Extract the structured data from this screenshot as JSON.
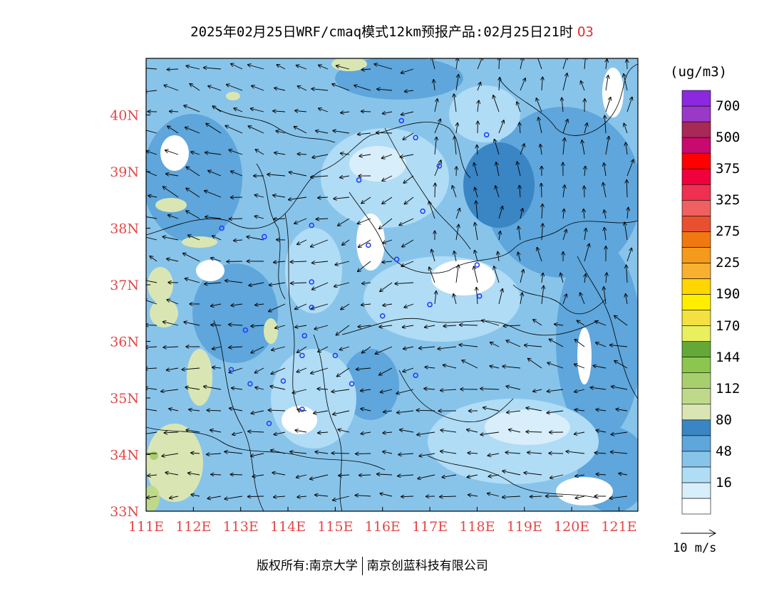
{
  "title": {
    "main": "2025年02月25日WRF/cmaq模式12km预报产品:02月25日21时",
    "pollutant": "O3"
  },
  "map": {
    "lon_labels": [
      "111E",
      "112E",
      "113E",
      "114E",
      "115E",
      "116E",
      "117E",
      "118E",
      "119E",
      "120E",
      "121E"
    ],
    "lat_labels": [
      "33N",
      "34N",
      "35N",
      "36N",
      "37N",
      "38N",
      "39N",
      "40N"
    ],
    "lon_range": [
      111,
      121.4
    ],
    "lat_range": [
      33,
      41
    ],
    "stations": [
      [
        116.4,
        39.9
      ],
      [
        116.7,
        39.6
      ],
      [
        117.2,
        39.1
      ],
      [
        118.2,
        39.65
      ],
      [
        115.5,
        38.85
      ],
      [
        116.85,
        38.3
      ],
      [
        112.6,
        38.0
      ],
      [
        113.5,
        37.85
      ],
      [
        114.5,
        38.05
      ],
      [
        115.7,
        37.7
      ],
      [
        116.3,
        37.45
      ],
      [
        118.0,
        37.35
      ],
      [
        114.5,
        37.05
      ],
      [
        118.05,
        36.8
      ],
      [
        117.0,
        36.65
      ],
      [
        114.5,
        36.6
      ],
      [
        116.0,
        36.45
      ],
      [
        113.1,
        36.2
      ],
      [
        114.35,
        36.1
      ],
      [
        114.3,
        35.75
      ],
      [
        115.0,
        35.75
      ],
      [
        112.8,
        35.5
      ],
      [
        116.7,
        35.4
      ],
      [
        113.9,
        35.3
      ],
      [
        115.35,
        35.25
      ],
      [
        113.2,
        35.25
      ],
      [
        114.3,
        34.8
      ],
      [
        113.6,
        34.55
      ]
    ]
  },
  "colorbar": {
    "unit": "(ug/m3)",
    "colors": [
      "#ffffff",
      "#d8eefa",
      "#b0dcf5",
      "#88c4ea",
      "#5ea6db",
      "#3a85c4",
      "#d9e6b4",
      "#bfd98a",
      "#a8cf6e",
      "#8cc64e",
      "#64a838",
      "#e8f060",
      "#f4e040",
      "#ffee00",
      "#ffd600",
      "#f8b030",
      "#f49a1c",
      "#f07810",
      "#e85030",
      "#f06060",
      "#f03050",
      "#f0003c",
      "#ff0000",
      "#c80a6e",
      "#a82858",
      "#9a38c8",
      "#8c28e0"
    ],
    "labels": [
      {
        "text": "16",
        "index": 1
      },
      {
        "text": "48",
        "index": 3
      },
      {
        "text": "80",
        "index": 5
      },
      {
        "text": "112",
        "index": 7
      },
      {
        "text": "144",
        "index": 9
      },
      {
        "text": "170",
        "index": 11
      },
      {
        "text": "190",
        "index": 13
      },
      {
        "text": "225",
        "index": 15
      },
      {
        "text": "275",
        "index": 17
      },
      {
        "text": "325",
        "index": 19
      },
      {
        "text": "375",
        "index": 21
      },
      {
        "text": "500",
        "index": 23
      },
      {
        "text": "700",
        "index": 25
      }
    ]
  },
  "wind_reference": "10 m/s",
  "copyright": {
    "left": "版权所有:南京大学",
    "right": "南京创蓝科技有限公司"
  }
}
